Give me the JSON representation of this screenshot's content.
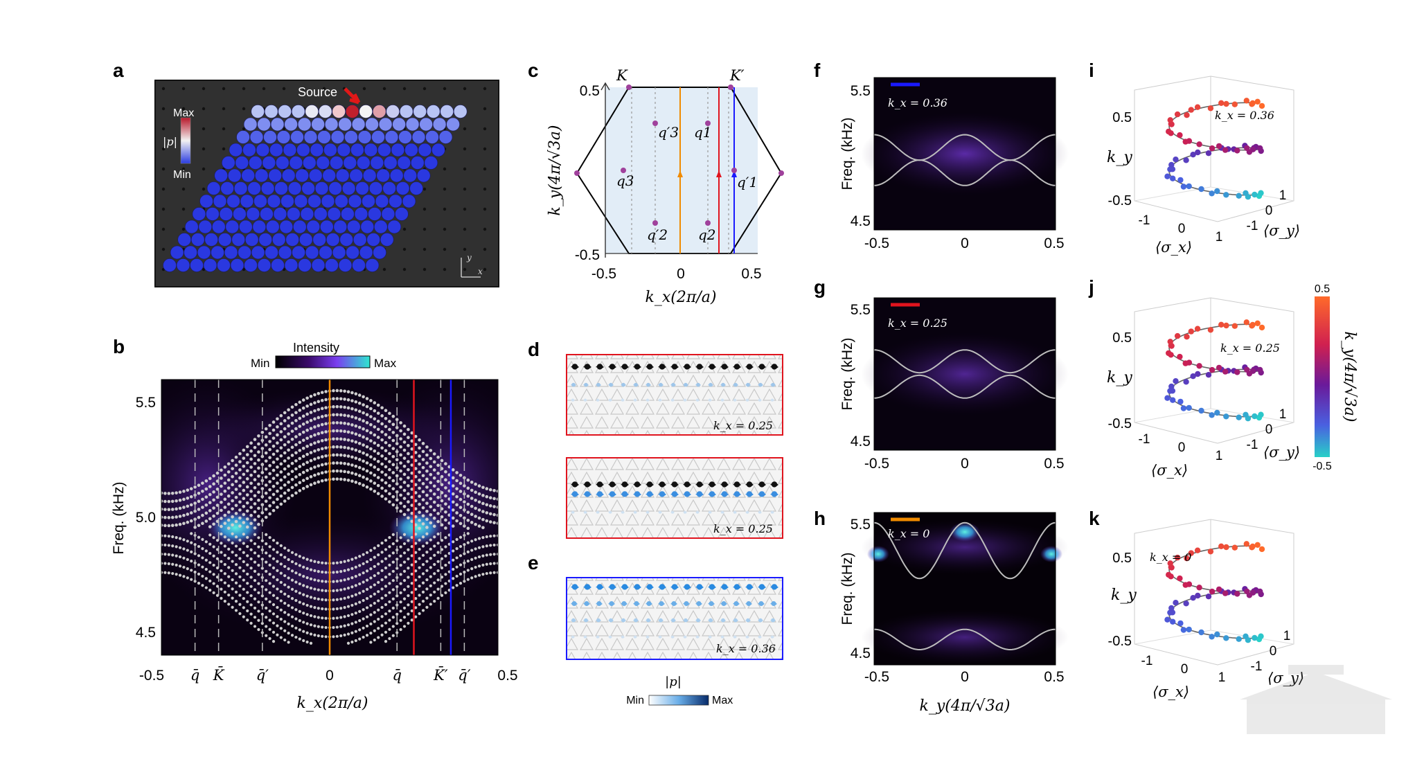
{
  "panels": {
    "a": "a",
    "b": "b",
    "c": "c",
    "d": "d",
    "e": "e",
    "f": "f",
    "g": "g",
    "h": "h",
    "i": "i",
    "j": "j",
    "k": "k"
  },
  "panel_a": {
    "source_label": "Source",
    "max_label": "Max",
    "min_label": "Min",
    "p_label": "|p|",
    "axis_x": "x",
    "axis_y": "y"
  },
  "panel_b": {
    "intensity_label": "Intensity",
    "min": "Min",
    "max": "Max",
    "ylabel": "Freq. (kHz)",
    "xlabel": "k_x(2π/a)",
    "yticks": [
      "5.5",
      "5.0",
      "4.5"
    ],
    "xticks": [
      "-0.5",
      "q̄",
      "K̄",
      "q̄′",
      "0",
      "q̄",
      "K̄′",
      "q̄′",
      "0.5"
    ]
  },
  "panel_c": {
    "K": "K",
    "Kp": "K′",
    "ylabel": "k_y(4π/√3a)",
    "xlabel": "k_x(2π/a)",
    "yticks": [
      "0.5",
      "-0.5"
    ],
    "xticks": [
      "-0.5",
      "0",
      "0.5"
    ],
    "points": [
      "q′3",
      "q1",
      "q3",
      "q′1",
      "q′2",
      "q2"
    ]
  },
  "panel_d": {
    "labels": [
      "k_x = 0.25",
      "k_x = 0.25"
    ]
  },
  "panel_e": {
    "label": "k_x = 0.36",
    "cb_title": "|p|",
    "cb_min": "Min",
    "cb_max": "Max"
  },
  "panel_fgh": {
    "ylabel": "Freq. (kHz)",
    "yticks": [
      "5.5",
      "4.5"
    ],
    "xticks": [
      "-0.5",
      "0",
      "0.5"
    ],
    "xlabel": "k_y(4π/√3a)",
    "f_label": "k_x = 0.36",
    "g_label": "k_x = 0.25",
    "h_label": "k_x = 0"
  },
  "panel_ijk": {
    "i_label": "k_x = 0.36",
    "j_label": "k_x = 0.25",
    "k_label": "k_x = 0",
    "zticks": [
      "0.5",
      "-0.5"
    ],
    "ky": "k_y",
    "sx": "⟨σ_x⟩",
    "sy": "⟨σ_y⟩",
    "xticks": [
      "-1",
      "0",
      "1"
    ],
    "yticks": [
      "1",
      "0",
      "-1"
    ],
    "cb_top": "0.5",
    "cb_bottom": "-0.5",
    "cb_label": "k_y(4π/√3a)"
  },
  "chart_data": [
    {
      "type": "heatmap",
      "title": "b",
      "xlabel": "k_x(2π/a)",
      "ylabel": "Freq. (kHz)",
      "xlim": [
        -0.5,
        0.5
      ],
      "ylim": [
        4.4,
        5.6
      ],
      "vertical_lines": [
        {
          "x": 0,
          "color": "#f08a00"
        },
        {
          "x": 0.25,
          "color": "#e0141e"
        },
        {
          "x": 0.36,
          "color": "#1a1aff"
        }
      ],
      "dashed_lines_x": [
        -0.4,
        -0.33,
        -0.2,
        0.2,
        0.33,
        0.4
      ]
    },
    {
      "type": "line",
      "title": "f",
      "xlim": [
        -0.5,
        0.5
      ],
      "ylim": [
        4.4,
        5.6
      ]
    },
    {
      "type": "line",
      "title": "g",
      "xlim": [
        -0.5,
        0.5
      ],
      "ylim": [
        4.4,
        5.6
      ]
    },
    {
      "type": "line",
      "title": "h",
      "xlim": [
        -0.5,
        0.5
      ],
      "ylim": [
        4.4,
        5.6
      ]
    }
  ],
  "colors": {
    "orange": "#f08a00",
    "red": "#e0141e",
    "blue": "#1a1aff",
    "purple": "#a0419c"
  }
}
